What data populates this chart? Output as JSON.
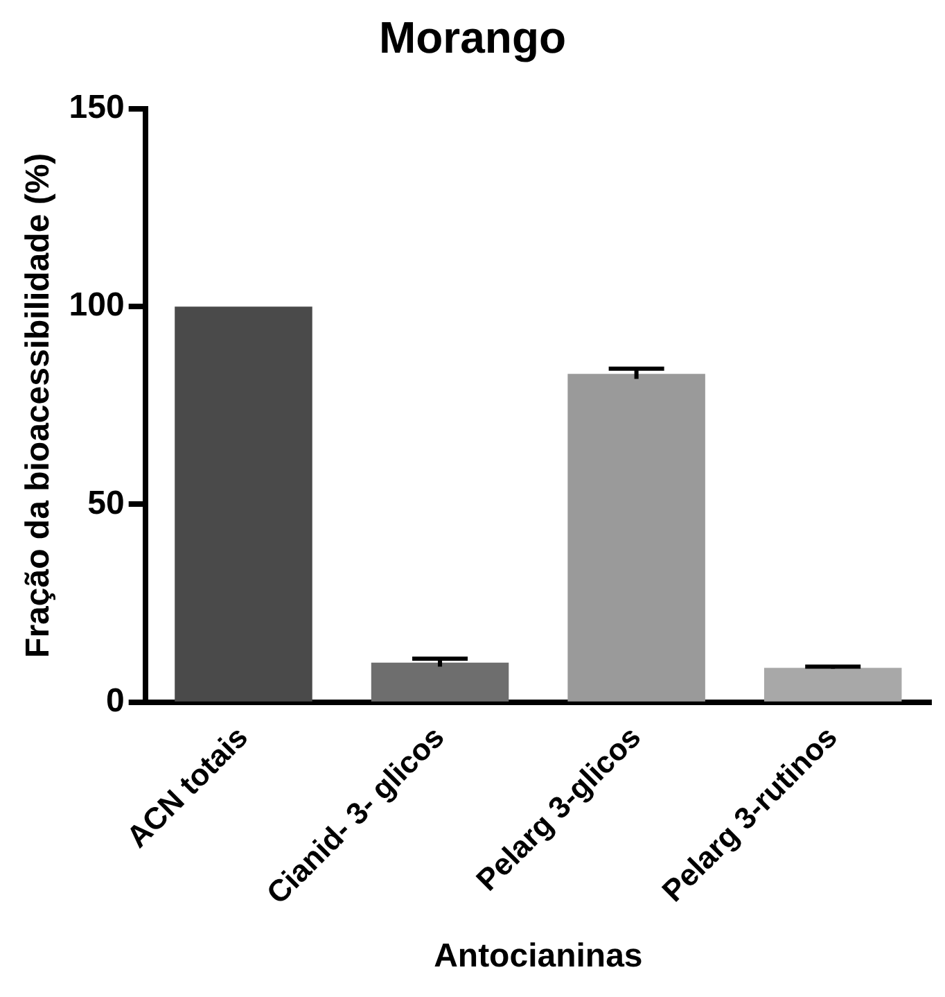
{
  "chart_data": {
    "type": "bar",
    "title": "Morango",
    "xlabel": "Antocianinas",
    "ylabel": "Fração da bioacessibilidade (%)",
    "categories": [
      "ACN totais",
      "Cianid- 3- glicos",
      "Pelarg 3-glicos",
      "Pelarg 3-rutinos"
    ],
    "values": [
      100,
      10,
      83,
      8.7
    ],
    "errors": [
      null,
      1,
      1.3,
      0.3
    ],
    "colors": [
      "#4a4a4a",
      "#6e6e6e",
      "#9a9a9a",
      "#a8a8a8"
    ],
    "ylim": [
      0,
      150
    ],
    "yticks": [
      0,
      50,
      100,
      150
    ],
    "grid": false,
    "legend": false
  }
}
